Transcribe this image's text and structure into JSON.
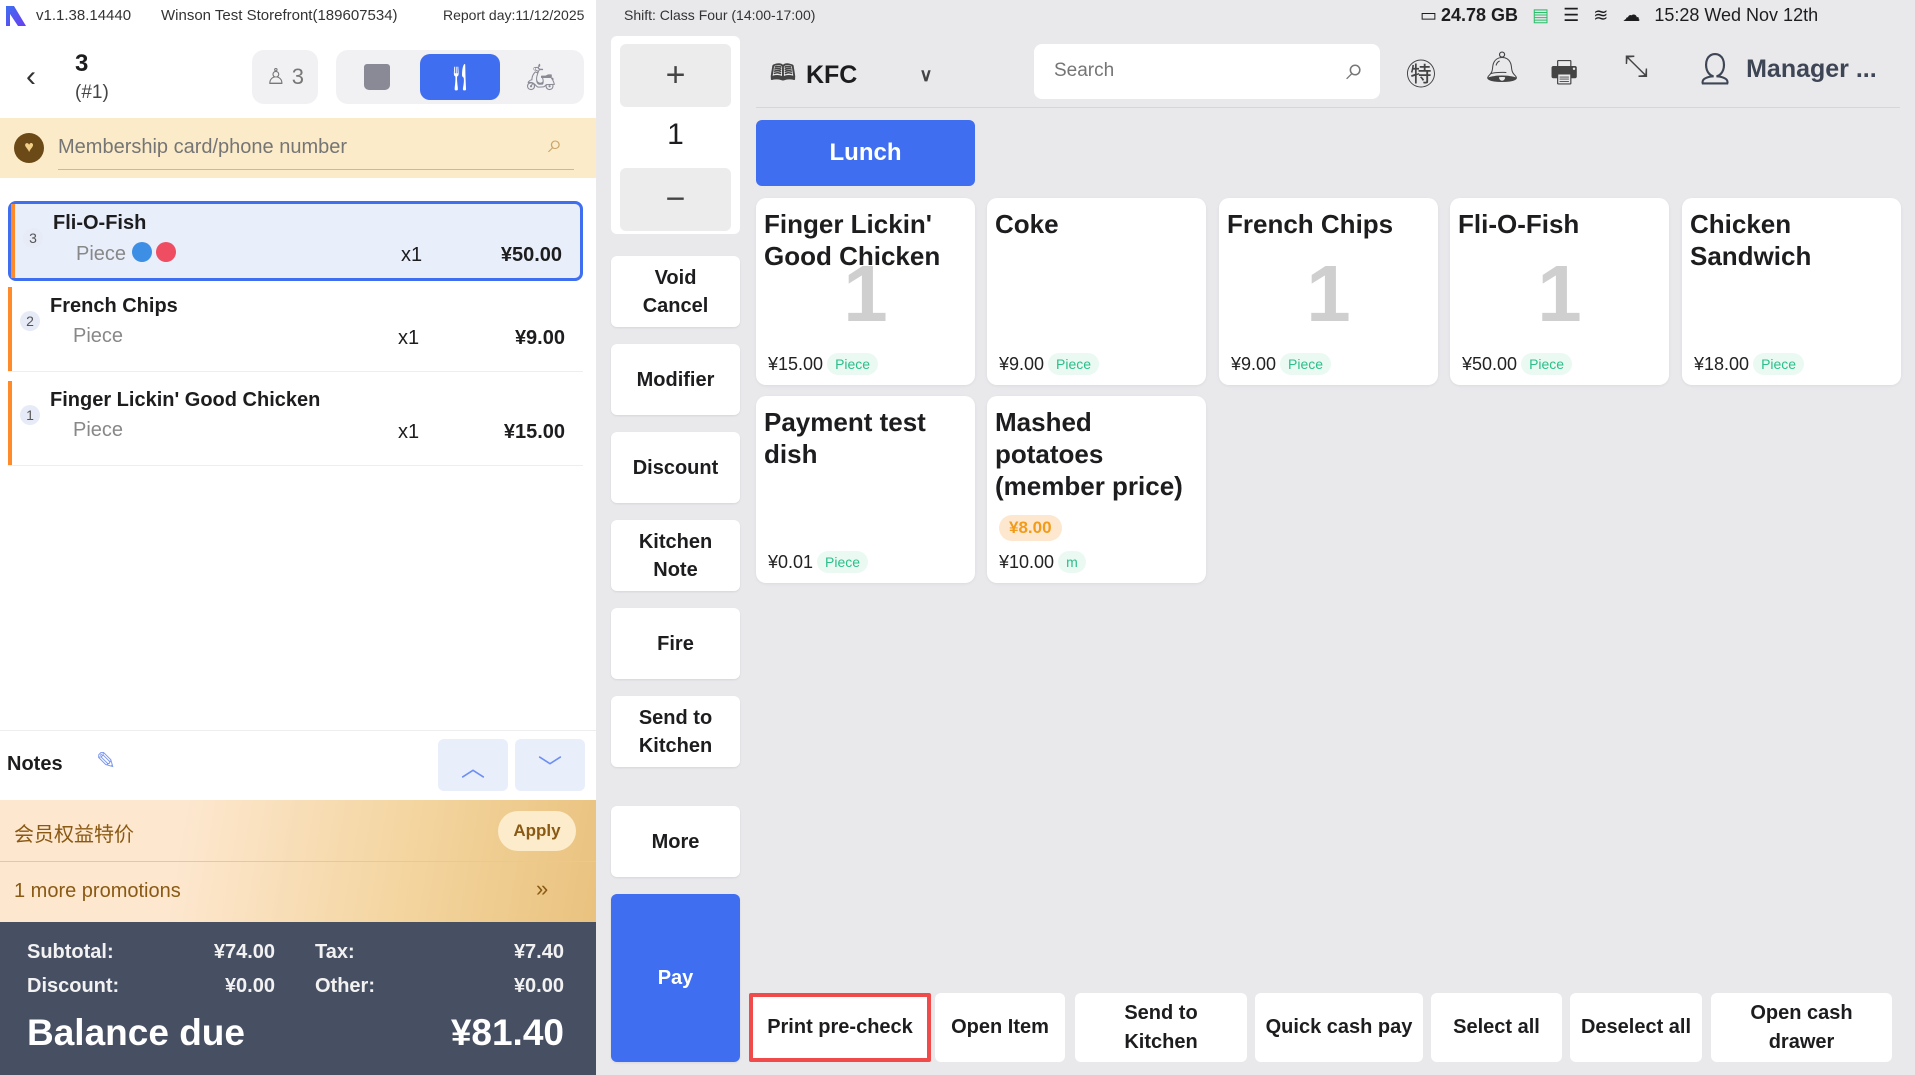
{
  "status_bar": {
    "version": "v1.1.38.14440",
    "store": "Winson Test Storefront(189607534)",
    "report_day": "Report day:11/12/2025",
    "shift": "Shift:  Class Four (14:00-17:00)",
    "storage": "24.78 GB",
    "clock": "15:28 Wed Nov 12th"
  },
  "order_header": {
    "table": "3",
    "order_no": "(#1)",
    "guests": "3",
    "active_mode": "dine-in"
  },
  "member": {
    "placeholder": "Membership card/phone number"
  },
  "order_items": [
    {
      "index": "3",
      "name": "Fli-O-Fish",
      "unit": "Piece",
      "qty": "x1",
      "price": "¥50.00",
      "selected": true
    },
    {
      "index": "2",
      "name": "French Chips",
      "unit": "Piece",
      "qty": "x1",
      "price": "¥9.00",
      "selected": false
    },
    {
      "index": "1",
      "name": "Finger Lickin' Good Chicken",
      "unit": "Piece",
      "qty": "x1",
      "price": "¥15.00",
      "selected": false
    }
  ],
  "notes": {
    "label": "Notes"
  },
  "promo": {
    "title": "会员权益特价",
    "apply": "Apply",
    "more": "1 more promotions"
  },
  "summary": {
    "subtotal_label": "Subtotal:",
    "subtotal": "¥74.00",
    "tax_label": "Tax:",
    "tax": "¥7.40",
    "discount_label": "Discount:",
    "discount": "¥0.00",
    "other_label": "Other:",
    "other": "¥0.00",
    "balance_label": "Balance due",
    "balance": "¥81.40"
  },
  "qty_panel": {
    "plus": "+",
    "value": "1",
    "minus": "−"
  },
  "actions": [
    "Void Cancel",
    "Modifier",
    "Discount",
    "Kitchen Note",
    "Fire",
    "Send to Kitchen",
    "More"
  ],
  "pay": "Pay",
  "menu": {
    "name": "KFC",
    "search_placeholder": "Search",
    "user": "Manager ..."
  },
  "category": "Lunch",
  "products": [
    {
      "name": "Finger Lickin' Good Chicken",
      "price": "¥15.00",
      "unit": "Piece",
      "count": "1"
    },
    {
      "name": "Coke",
      "price": "¥9.00",
      "unit": "Piece",
      "count": ""
    },
    {
      "name": "French Chips",
      "price": "¥9.00",
      "unit": "Piece",
      "count": "1"
    },
    {
      "name": "Fli-O-Fish",
      "price": "¥50.00",
      "unit": "Piece",
      "count": "1"
    },
    {
      "name": "Chicken Sandwich",
      "price": "¥18.00",
      "unit": "Piece",
      "count": ""
    },
    {
      "name": "Payment test dish",
      "price": "¥0.01",
      "unit": "Piece",
      "count": ""
    },
    {
      "name": "Mashed potatoes (member price)",
      "price": "¥10.00",
      "unit": "m",
      "count": "",
      "member_price": "¥8.00"
    }
  ],
  "bottom_actions": [
    "Print pre-check",
    "Open Item",
    "Send to Kitchen",
    "Quick cash pay",
    "Select all",
    "Deselect all",
    "Open cash drawer"
  ],
  "colors": {
    "accent": "#3f6ef0",
    "highlight": "#f04a4a",
    "summary_bg": "#474f63"
  }
}
